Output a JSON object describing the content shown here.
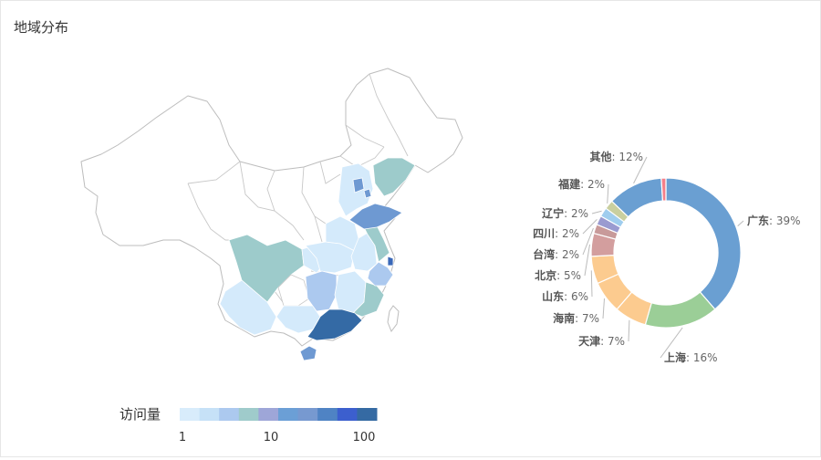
{
  "page_title": "地域分布",
  "chart_data": [
    {
      "type": "map",
      "visual_map": {
        "label": "访问量",
        "scale": "log",
        "ticks": [
          "1",
          "10",
          "100"
        ],
        "colors": [
          "#d8ecfb",
          "#c6e1f7",
          "#acc9ef",
          "#9fcbcb",
          "#9ea6d8",
          "#6b9fd6",
          "#7799d0",
          "#4f83c4",
          "#3c5fce",
          "#356aa3"
        ]
      },
      "regions": [
        {
          "name": "广东",
          "color": "#346aa5"
        },
        {
          "name": "上海",
          "color": "#3a68b8"
        },
        {
          "name": "天津",
          "color": "#6e99d2"
        },
        {
          "name": "海南",
          "color": "#6e99d2"
        },
        {
          "name": "山东",
          "color": "#6e99d2"
        },
        {
          "name": "北京",
          "color": "#6e99d2"
        },
        {
          "name": "台湾",
          "color": "#ffffff"
        },
        {
          "name": "四川",
          "color": "#9dcbcb"
        },
        {
          "name": "辽宁",
          "color": "#9dcbcb"
        },
        {
          "name": "福建",
          "color": "#9dcbcb"
        },
        {
          "name": "湖南",
          "color": "#acc9ef"
        },
        {
          "name": "浙江",
          "color": "#acc9ef"
        },
        {
          "name": "江苏",
          "color": "#9dcbcb"
        },
        {
          "name": "广西",
          "color": "#d4eafb"
        },
        {
          "name": "云南",
          "color": "#d4eafb"
        },
        {
          "name": "湖北",
          "color": "#d4eafb"
        },
        {
          "name": "河南",
          "color": "#d4eafb"
        },
        {
          "name": "安徽",
          "color": "#d4eafb"
        },
        {
          "name": "江西",
          "color": "#d4eafb"
        },
        {
          "name": "河北",
          "color": "#d4eafb"
        },
        {
          "name": "重庆",
          "color": "#d4eafb"
        },
        {
          "name": "贵州",
          "color": "#ffffff"
        }
      ]
    },
    {
      "type": "pie",
      "variant": "donut",
      "slices": [
        {
          "name": "广东",
          "value": 39,
          "color": "#6a9fd2"
        },
        {
          "name": "上海",
          "value": 16,
          "color": "#9bce97"
        },
        {
          "name": "天津",
          "value": 7,
          "color": "#fccb8f"
        },
        {
          "name": "海南",
          "value": 7,
          "color": "#fccb8f"
        },
        {
          "name": "山东",
          "value": 6,
          "color": "#fccb8f"
        },
        {
          "name": "北京",
          "value": 5,
          "color": "#d39e9e"
        },
        {
          "name": "台湾",
          "value": 2,
          "color": "#c89a9a"
        },
        {
          "name": "四川",
          "value": 2,
          "color": "#9a9bd0"
        },
        {
          "name": "辽宁",
          "value": 2,
          "color": "#9fcdee"
        },
        {
          "name": "福建",
          "value": 2,
          "color": "#c9cf9f"
        },
        {
          "name": "其他",
          "value": 12,
          "color": "#6a9fd2"
        }
      ],
      "extra_slice_color": "#f57f89"
    }
  ]
}
